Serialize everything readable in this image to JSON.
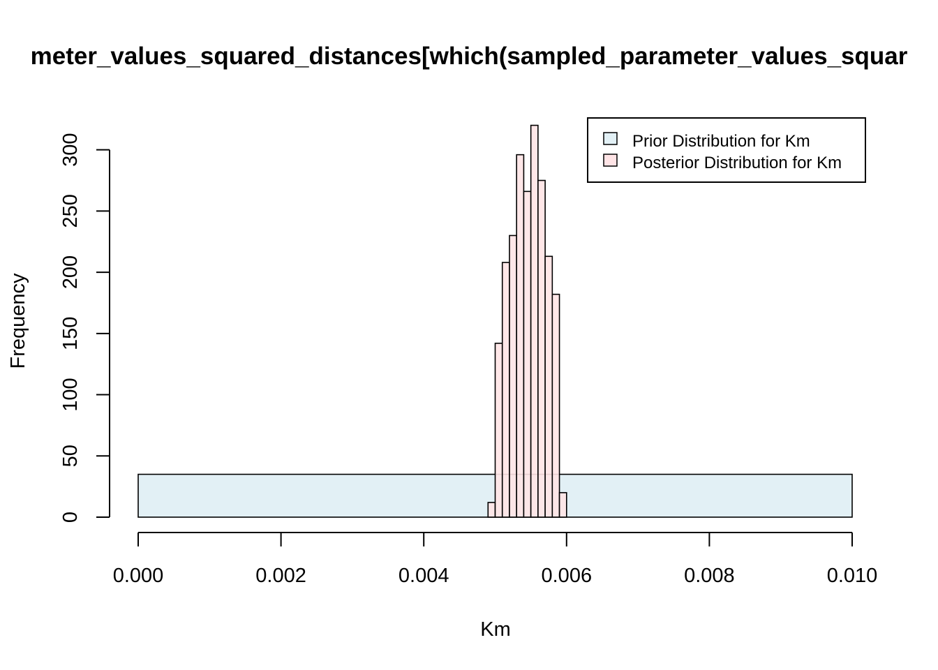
{
  "chart_data": {
    "type": "bar",
    "title": "meter_values_squared_distances[which(sampled_parameter_values_squar",
    "xlabel": "Km",
    "ylabel": "Frequency",
    "xlim": [
      0.0,
      0.01
    ],
    "ylim": [
      0,
      320
    ],
    "x_ticks": [
      0.0,
      0.002,
      0.004,
      0.006,
      0.008,
      0.01
    ],
    "x_tick_labels": [
      "0.000",
      "0.002",
      "0.004",
      "0.006",
      "0.008",
      "0.010"
    ],
    "y_ticks": [
      0,
      50,
      100,
      150,
      200,
      250,
      300
    ],
    "y_tick_labels": [
      "0",
      "50",
      "100",
      "150",
      "200",
      "250",
      "300"
    ],
    "legend_position": "top-right",
    "series": [
      {
        "name": "Prior Distribution for Km",
        "color": "#e2f0f5",
        "bins": [
          {
            "x0": 0.0,
            "x1": 0.01,
            "count": 35
          }
        ]
      },
      {
        "name": "Posterior Distribution for Km",
        "color": "#ffe4e6",
        "bins": [
          {
            "x0": 0.0049,
            "x1": 0.005,
            "count": 12
          },
          {
            "x0": 0.005,
            "x1": 0.0051,
            "count": 142
          },
          {
            "x0": 0.0051,
            "x1": 0.0052,
            "count": 208
          },
          {
            "x0": 0.0052,
            "x1": 0.0053,
            "count": 230
          },
          {
            "x0": 0.0053,
            "x1": 0.0054,
            "count": 296
          },
          {
            "x0": 0.0054,
            "x1": 0.0055,
            "count": 266
          },
          {
            "x0": 0.0055,
            "x1": 0.0056,
            "count": 320
          },
          {
            "x0": 0.0056,
            "x1": 0.0057,
            "count": 275
          },
          {
            "x0": 0.0057,
            "x1": 0.0058,
            "count": 213
          },
          {
            "x0": 0.0058,
            "x1": 0.0059,
            "count": 182
          },
          {
            "x0": 0.0059,
            "x1": 0.006,
            "count": 20
          }
        ]
      }
    ]
  }
}
